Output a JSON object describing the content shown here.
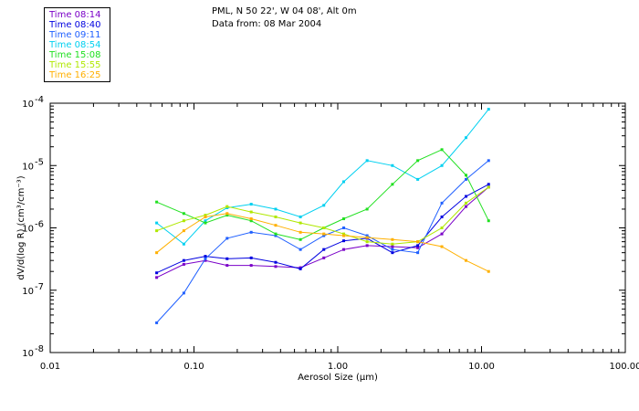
{
  "header": {
    "location": "PML, N 50 22', W 04 08', Alt 0m",
    "data_from": "Data from: 08 Mar 2004"
  },
  "chart_data": {
    "type": "line",
    "title": "PML, N 50 22', W 04 08', Alt 0m",
    "subtitle": "Data from: 08 Mar 2004",
    "xlabel": "Aerosol Size (µm)",
    "ylabel": "dV/d(log R) (cm³/cm⁻³)",
    "xscale": "log",
    "yscale": "log",
    "xlim": [
      0.01,
      100
    ],
    "ylim": [
      1e-08,
      0.0001
    ],
    "x_tick_labels": [
      "0.01",
      "0.10",
      "1.00",
      "10.00",
      "100.00"
    ],
    "y_tick_labels": [
      {
        "base": "10",
        "exp": "-8"
      },
      {
        "base": "10",
        "exp": "-7"
      },
      {
        "base": "10",
        "exp": "-6"
      },
      {
        "base": "10",
        "exp": "-5"
      },
      {
        "base": "10",
        "exp": "-4"
      }
    ],
    "legend_position": "top-left",
    "x": [
      0.055,
      0.085,
      0.12,
      0.17,
      0.25,
      0.37,
      0.55,
      0.8,
      1.1,
      1.6,
      2.4,
      3.6,
      5.3,
      7.8,
      11.2
    ],
    "series": [
      {
        "name": "Time 08:14",
        "color": "#7a00c8",
        "values": [
          1.6e-07,
          2.6e-07,
          3e-07,
          2.5e-07,
          2.5e-07,
          2.4e-07,
          2.3e-07,
          3.3e-07,
          4.5e-07,
          5.2e-07,
          5e-07,
          4.8e-07,
          8e-07,
          2.2e-06,
          4.5e-06
        ]
      },
      {
        "name": "Time 08:40",
        "color": "#0000e0",
        "values": [
          1.9e-07,
          3e-07,
          3.5e-07,
          3.2e-07,
          3.3e-07,
          2.8e-07,
          2.2e-07,
          4.5e-07,
          6.2e-07,
          6.8e-07,
          4e-07,
          5.2e-07,
          1.5e-06,
          3.2e-06,
          5e-06
        ]
      },
      {
        "name": "Time 09:11",
        "color": "#2060ff",
        "values": [
          3e-08,
          9e-08,
          3.2e-07,
          6.8e-07,
          8.5e-07,
          7.5e-07,
          4.5e-07,
          7.5e-07,
          1e-06,
          7.5e-07,
          4.5e-07,
          4e-07,
          2.5e-06,
          6e-06,
          1.2e-05
        ]
      },
      {
        "name": "Time 08:54",
        "color": "#00d0f0",
        "values": [
          1.2e-06,
          5.5e-07,
          1.3e-06,
          2.1e-06,
          2.4e-06,
          2e-06,
          1.5e-06,
          2.3e-06,
          5.5e-06,
          1.2e-05,
          1e-05,
          6e-06,
          1e-05,
          2.8e-05,
          8e-05
        ]
      },
      {
        "name": "Time 15:08",
        "color": "#20e020",
        "values": [
          2.6e-06,
          1.7e-06,
          1.2e-06,
          1.6e-06,
          1.3e-06,
          8e-07,
          6.5e-07,
          1e-06,
          1.4e-06,
          2e-06,
          5e-06,
          1.2e-05,
          1.8e-05,
          7e-06,
          1.3e-06
        ]
      },
      {
        "name": "Time 15:55",
        "color": "#b0e800",
        "values": [
          9e-07,
          1.3e-06,
          1.6e-06,
          2.2e-06,
          1.8e-06,
          1.5e-06,
          1.2e-06,
          1e-06,
          8e-07,
          6e-07,
          5.5e-07,
          6e-07,
          1e-06,
          2.5e-06,
          4.5e-06
        ]
      },
      {
        "name": "Time 16:25",
        "color": "#ffb000",
        "values": [
          4e-07,
          9e-07,
          1.5e-06,
          1.7e-06,
          1.4e-06,
          1.1e-06,
          8.5e-07,
          8e-07,
          7.5e-07,
          7e-07,
          6.5e-07,
          6e-07,
          5e-07,
          3e-07,
          2e-07
        ]
      }
    ]
  }
}
